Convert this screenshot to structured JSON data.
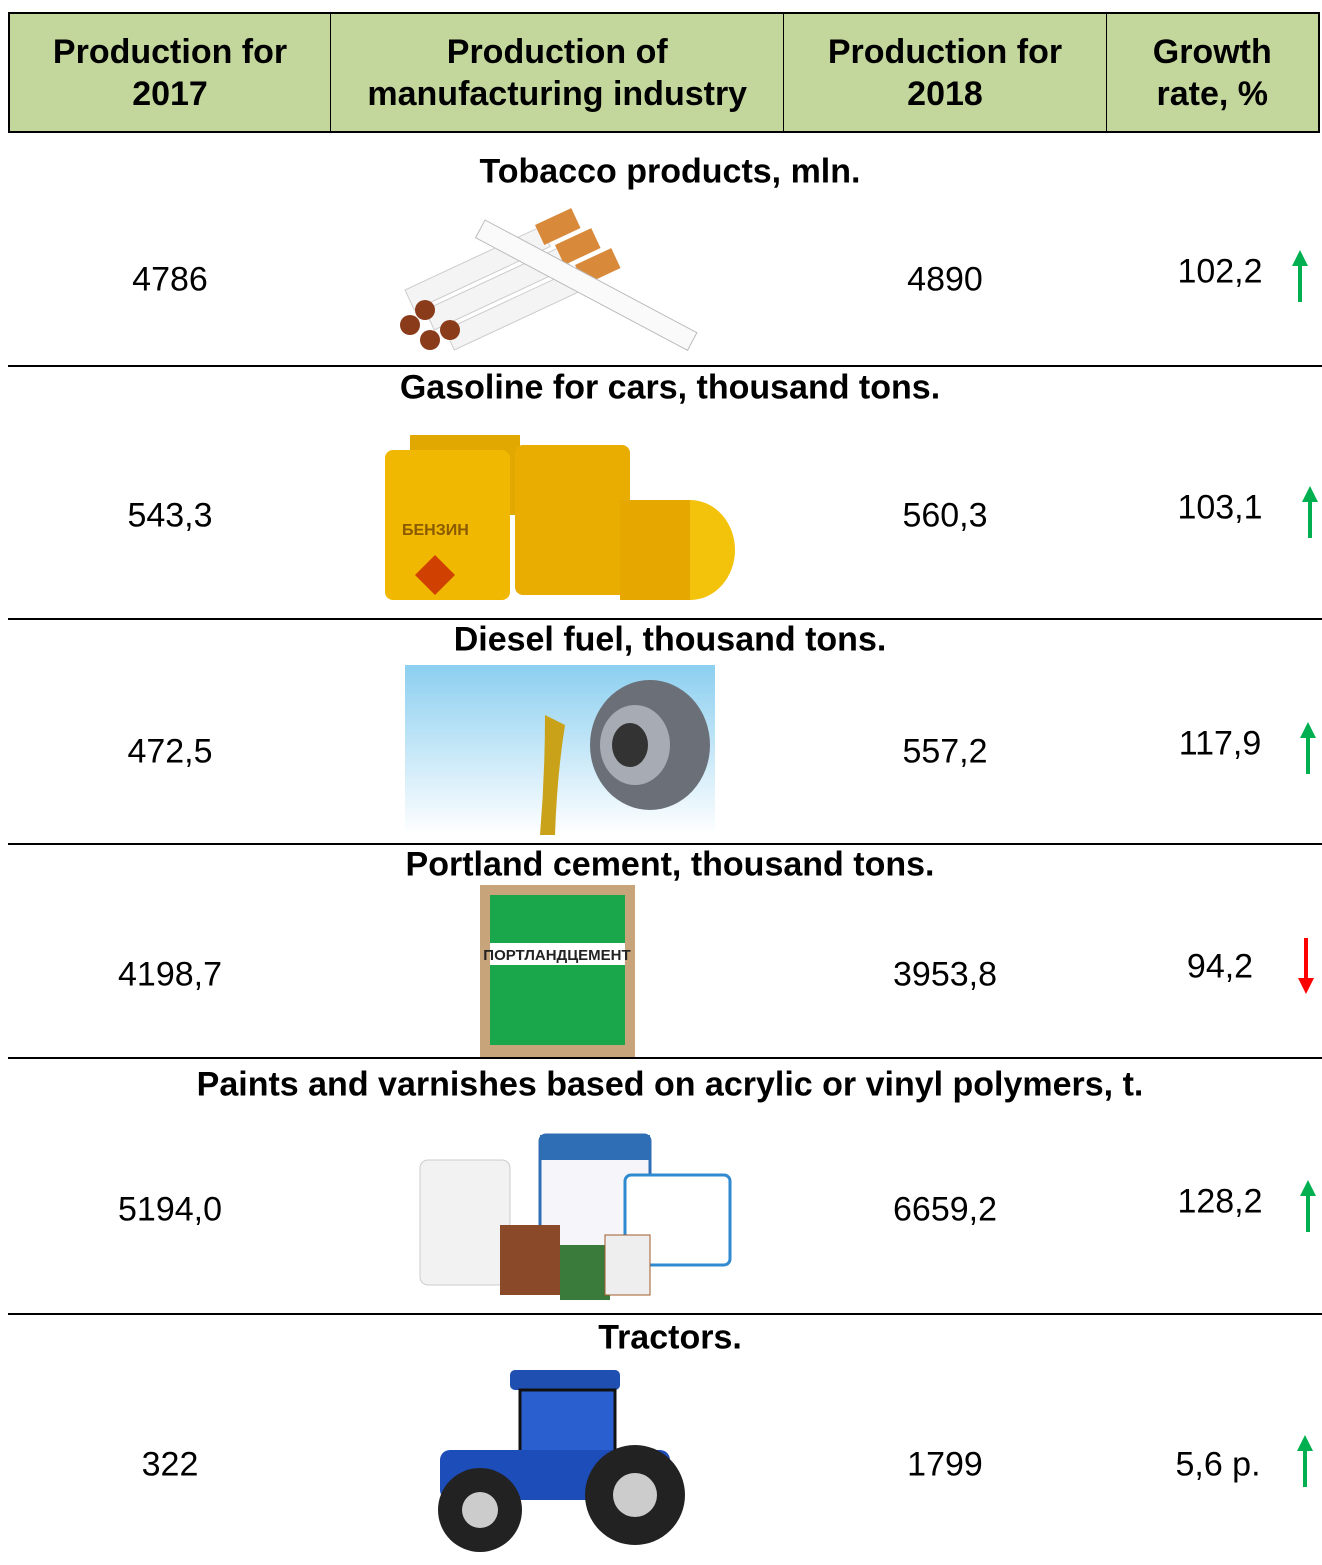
{
  "header": [
    "Production for 2017",
    "Production of manufacturing industry",
    "Production for 2018",
    "Growth rate, %"
  ],
  "sections": [
    {
      "title": "Tobacco products, mln.",
      "production_2017": "4786",
      "production_2018": "4890",
      "growth_rate": "102,2"
    },
    {
      "title": "Gasoline for cars, thousand tons.",
      "production_2017": "543,3",
      "production_2018": "560,3",
      "growth_rate": "103,1"
    },
    {
      "title": "Diesel fuel, thousand tons.",
      "production_2017": "472,5",
      "production_2018": "557,2",
      "growth_rate": "117,9"
    },
    {
      "title": "Portland cement, thousand tons.",
      "production_2017": "4198,7",
      "production_2018": "3953,8",
      "growth_rate": "94,2"
    },
    {
      "title": "Paints and varnishes based on acrylic or vinyl polymers, t.",
      "production_2017": "5194,0",
      "production_2018": "6659,2",
      "growth_rate": "128,2"
    },
    {
      "title": "Tractors.",
      "production_2017": "322",
      "production_2018": "1799",
      "growth_rate": "5,6 р."
    }
  ]
}
